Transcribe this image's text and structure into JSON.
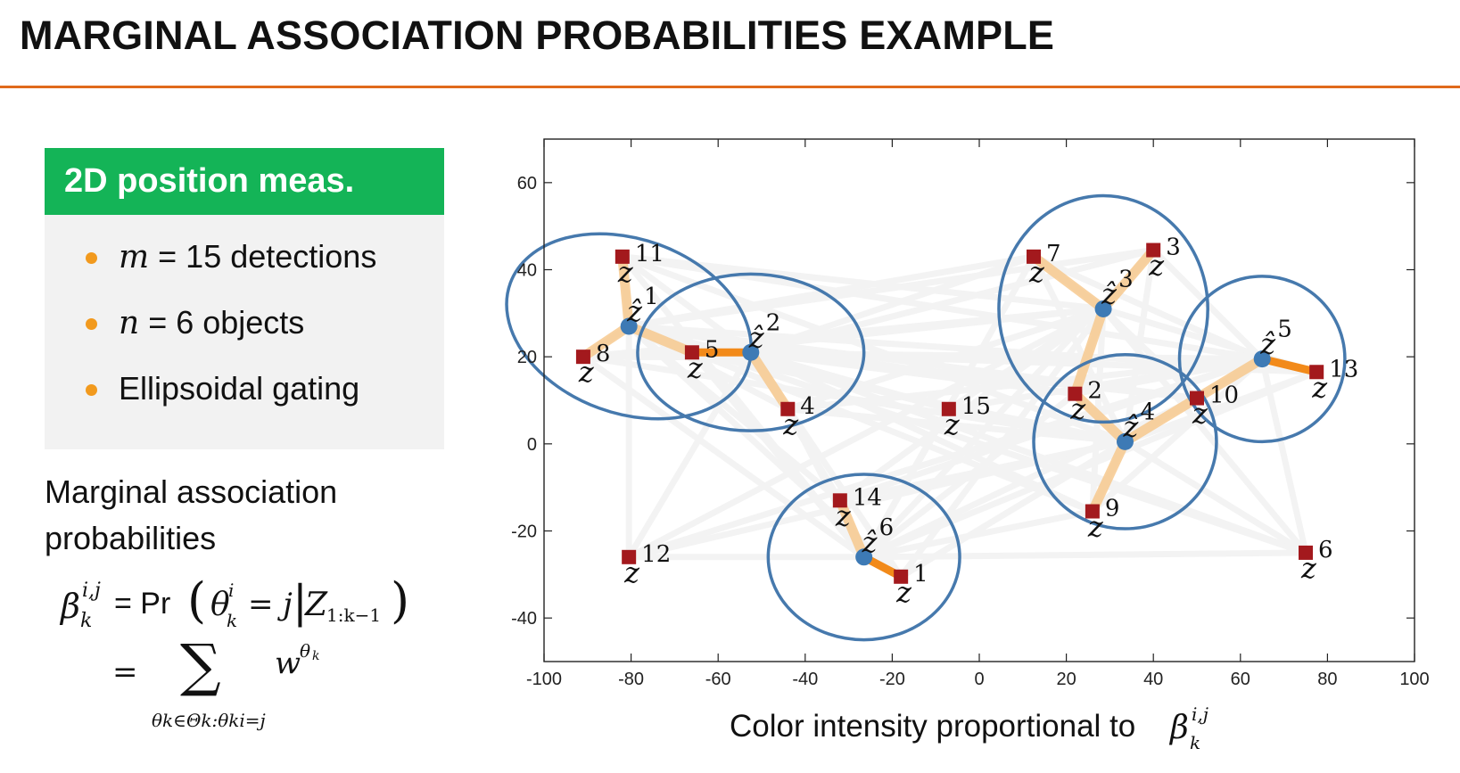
{
  "slide": {
    "title": "MARGINAL ASSOCIATION PROBABILITIES EXAMPLE",
    "accent_color": "#e06a1b"
  },
  "infobox": {
    "header": "2D position meas.",
    "header_color": "#14b457",
    "bullet_color": "#f29a1e",
    "items": [
      {
        "var": "m",
        "rest": " = 15 detections"
      },
      {
        "var": "n",
        "rest": " = 6 objects"
      },
      {
        "var": "",
        "rest": "Ellipsoidal gating"
      }
    ]
  },
  "left_text": {
    "line1": "Marginal association",
    "line2": "probabilities"
  },
  "formula": {
    "beta": "β",
    "beta_sup": "i,j",
    "beta_sub": "k",
    "eq1": "= Pr",
    "theta": "θ",
    "theta_sup": "i",
    "theta_sub": "k",
    "eq_j": "= j",
    "Z": "Z",
    "Z_sub": "1:k−1",
    "eq2": "=",
    "sum": "∑",
    "w": "w",
    "w_sup": "θ",
    "w_sup_sub": "k",
    "sum_sub": "θk∈Θk:θki=j"
  },
  "caption": {
    "text": "Color intensity proportional to",
    "symbol": "β",
    "symbol_sup": "i,j",
    "symbol_sub": "k"
  },
  "chart_data": {
    "type": "scatter",
    "title": "",
    "xlabel": "Color intensity proportional to β_k^{i,j}",
    "ylabel": "",
    "xlim": [
      -100,
      100
    ],
    "ylim": [
      -50,
      70
    ],
    "xticks": [
      -100,
      -80,
      -60,
      -40,
      -20,
      0,
      20,
      40,
      60,
      80,
      100
    ],
    "yticks": [
      -40,
      -20,
      0,
      20,
      40,
      60
    ],
    "grid": false,
    "colors": {
      "detection": "#a3191d",
      "object": "#3d7ab5",
      "gate": "#4679ad",
      "assoc_strong": "#f28a1a",
      "assoc_weak": "#f7c98f",
      "background_edges": "#f3f3f3"
    },
    "objects": [
      {
        "label": "1",
        "x": -80.5,
        "y": 27,
        "gate_rx": 29,
        "gate_ry": 20,
        "gate_rotation_deg": 20
      },
      {
        "label": "2",
        "x": -52.5,
        "y": 21,
        "gate_rx": 26,
        "gate_ry": 18,
        "gate_rotation_deg": 0
      },
      {
        "label": "3",
        "x": 28.5,
        "y": 31,
        "gate_rx": 24,
        "gate_ry": 26,
        "gate_rotation_deg": 0
      },
      {
        "label": "4",
        "x": 33.5,
        "y": 0.5,
        "gate_rx": 21,
        "gate_ry": 20,
        "gate_rotation_deg": 0
      },
      {
        "label": "5",
        "x": 65,
        "y": 19.5,
        "gate_rx": 19,
        "gate_ry": 19,
        "gate_rotation_deg": 0
      },
      {
        "label": "6",
        "x": -26.5,
        "y": -26,
        "gate_rx": 22,
        "gate_ry": 19,
        "gate_rotation_deg": 0
      }
    ],
    "detections": [
      {
        "label": "1",
        "x": -18,
        "y": -30.5
      },
      {
        "label": "2",
        "x": 22,
        "y": 11.5
      },
      {
        "label": "3",
        "x": 40,
        "y": 44.5
      },
      {
        "label": "4",
        "x": -44,
        "y": 8
      },
      {
        "label": "5",
        "x": -66,
        "y": 21
      },
      {
        "label": "6",
        "x": 75,
        "y": -25
      },
      {
        "label": "7",
        "x": 12.5,
        "y": 43
      },
      {
        "label": "8",
        "x": -91,
        "y": 20
      },
      {
        "label": "9",
        "x": 26,
        "y": -15.5
      },
      {
        "label": "10",
        "x": 50,
        "y": 10.5
      },
      {
        "label": "11",
        "x": -82,
        "y": 43
      },
      {
        "label": "12",
        "x": -80.5,
        "y": -26
      },
      {
        "label": "13",
        "x": 77.5,
        "y": 16.5
      },
      {
        "label": "14",
        "x": -32,
        "y": -13
      },
      {
        "label": "15",
        "x": -7,
        "y": 8
      }
    ],
    "associations": [
      {
        "object": "1",
        "detection": "11",
        "strength": "weak"
      },
      {
        "object": "1",
        "detection": "8",
        "strength": "weak"
      },
      {
        "object": "1",
        "detection": "5",
        "strength": "weak"
      },
      {
        "object": "2",
        "detection": "5",
        "strength": "strong"
      },
      {
        "object": "2",
        "detection": "4",
        "strength": "weak"
      },
      {
        "object": "3",
        "detection": "7",
        "strength": "weak"
      },
      {
        "object": "3",
        "detection": "3",
        "strength": "weak"
      },
      {
        "object": "3",
        "detection": "2",
        "strength": "weak"
      },
      {
        "object": "4",
        "detection": "2",
        "strength": "weak"
      },
      {
        "object": "4",
        "detection": "9",
        "strength": "weak"
      },
      {
        "object": "4",
        "detection": "10",
        "strength": "weak"
      },
      {
        "object": "5",
        "detection": "13",
        "strength": "strong"
      },
      {
        "object": "5",
        "detection": "10",
        "strength": "weak"
      },
      {
        "object": "6",
        "detection": "1",
        "strength": "strong"
      },
      {
        "object": "6",
        "detection": "14",
        "strength": "weak"
      }
    ]
  }
}
